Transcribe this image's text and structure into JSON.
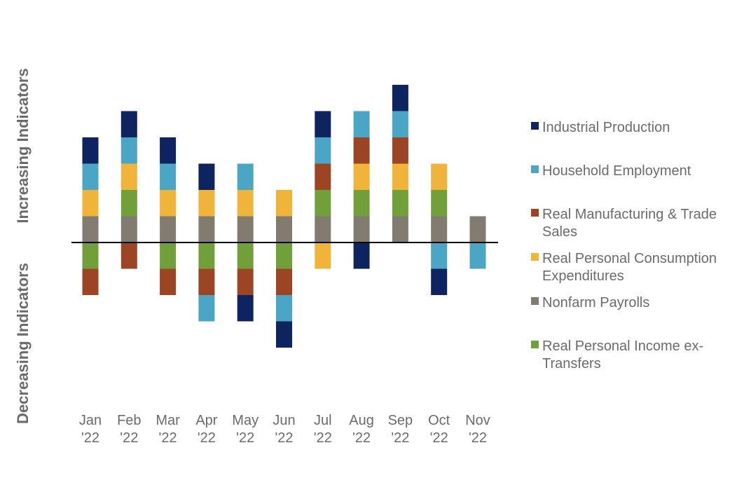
{
  "chart_data": {
    "type": "bar",
    "stacked": true,
    "grid": false,
    "legend_position": "right",
    "side_labels": {
      "increasing": "Increasing Indicators",
      "decreasing": "Decreasing Indicators"
    },
    "categories": [
      {
        "line1": "Jan",
        "line2": "'22"
      },
      {
        "line1": "Feb",
        "line2": "'22"
      },
      {
        "line1": "Mar",
        "line2": "'22"
      },
      {
        "line1": "Apr",
        "line2": "'22"
      },
      {
        "line1": "May",
        "line2": "'22"
      },
      {
        "line1": "Jun",
        "line2": "'22"
      },
      {
        "line1": "Jul",
        "line2": "'22"
      },
      {
        "line1": "Aug",
        "line2": "'22"
      },
      {
        "line1": "Sep",
        "line2": "'22"
      },
      {
        "line1": "Oct",
        "line2": "'22"
      },
      {
        "line1": "Nov",
        "line2": "'22"
      }
    ],
    "series": [
      {
        "key": "nonfarm",
        "color": "#817b70",
        "values": [
          1,
          1,
          1,
          1,
          1,
          1,
          1,
          1,
          1,
          1,
          1
        ]
      },
      {
        "key": "income",
        "color": "#71a03b",
        "values": [
          -1,
          1,
          -1,
          -1,
          -1,
          -1,
          1,
          1,
          1,
          1,
          0
        ]
      },
      {
        "key": "pce",
        "color": "#f0b43a",
        "values": [
          1,
          1,
          1,
          1,
          1,
          1,
          -1,
          1,
          1,
          1,
          0
        ]
      },
      {
        "key": "mfg",
        "color": "#9b4524",
        "values": [
          -1,
          -1,
          -1,
          -1,
          -1,
          -1,
          1,
          1,
          1,
          0,
          0
        ]
      },
      {
        "key": "household",
        "color": "#4ba5c5",
        "values": [
          1,
          1,
          1,
          -1,
          1,
          -1,
          1,
          1,
          1,
          -1,
          -1
        ]
      },
      {
        "key": "industrial",
        "color": "#0d2461",
        "values": [
          1,
          1,
          1,
          1,
          -1,
          -1,
          1,
          -1,
          1,
          -1,
          0
        ]
      }
    ],
    "legend": [
      {
        "key": "industrial",
        "color": "#0d2461",
        "lines": [
          "Industrial Production"
        ]
      },
      {
        "key": "household",
        "color": "#4ba5c5",
        "lines": [
          "Household Employment"
        ]
      },
      {
        "key": "mfg",
        "color": "#9b4524",
        "lines": [
          "Real Manufacturing & Trade",
          "Sales"
        ]
      },
      {
        "key": "pce",
        "color": "#f0b43a",
        "lines": [
          "Real Personal Consumption",
          "Expenditures"
        ]
      },
      {
        "key": "nonfarm",
        "color": "#817b70",
        "lines": [
          "Nonfarm Payrolls"
        ]
      },
      {
        "key": "income",
        "color": "#71a03b",
        "lines": [
          "Real Personal Income ex-",
          "Transfers"
        ]
      }
    ]
  }
}
